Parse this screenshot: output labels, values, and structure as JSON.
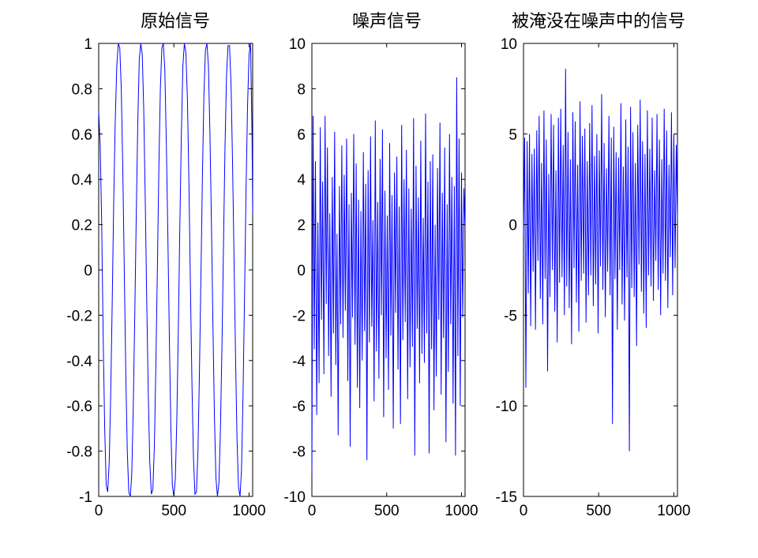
{
  "chart_data": [
    {
      "type": "line",
      "title": "原始信号",
      "xlabel": "",
      "ylabel": "",
      "xlim": [
        0,
        1024
      ],
      "ylim": [
        -1,
        1
      ],
      "xticks": [
        0,
        500,
        1000
      ],
      "yticks": [
        -1,
        -0.8,
        -0.6,
        -0.4,
        -0.2,
        0,
        0.2,
        0.4,
        0.6,
        0.8,
        1
      ],
      "ytick_labels": [
        "-1",
        "-0.8",
        "-0.6",
        "-0.4",
        "-0.2",
        "0",
        "0.2",
        "0.4",
        "0.6",
        "0.8",
        "1"
      ],
      "grid": false,
      "series": [
        {
          "color": "#0000ff",
          "x": [
            0,
            10,
            20,
            30,
            40,
            50,
            60,
            70,
            80,
            90,
            100,
            110,
            120,
            130,
            140,
            150,
            160,
            170,
            180,
            190,
            200,
            210,
            220,
            230,
            240,
            250,
            260,
            270,
            280,
            290,
            300,
            310,
            320,
            330,
            340,
            350,
            360,
            370,
            380,
            390,
            400,
            410,
            420,
            430,
            440,
            450,
            460,
            470,
            480,
            490,
            500,
            510,
            520,
            530,
            540,
            550,
            560,
            570,
            580,
            590,
            600,
            610,
            620,
            630,
            640,
            650,
            660,
            670,
            680,
            690,
            700,
            710,
            720,
            730,
            740,
            750,
            760,
            770,
            780,
            790,
            800,
            810,
            820,
            830,
            840,
            850,
            860,
            870,
            880,
            890,
            900,
            910,
            920,
            930,
            940,
            950,
            960,
            970,
            980,
            990,
            1000,
            1010,
            1020,
            1024
          ],
          "y": [
            0.7,
            0.55,
            0.2,
            -0.3,
            -0.7,
            -0.95,
            -0.98,
            -0.85,
            -0.55,
            -0.15,
            0.3,
            0.65,
            0.9,
            1.0,
            0.98,
            0.8,
            0.45,
            0.0,
            -0.45,
            -0.8,
            -0.98,
            -1.0,
            -0.9,
            -0.6,
            -0.2,
            0.25,
            0.65,
            0.93,
            1.0,
            0.95,
            0.7,
            0.3,
            -0.15,
            -0.55,
            -0.85,
            -0.99,
            -0.97,
            -0.78,
            -0.42,
            0.0,
            0.45,
            0.8,
            0.98,
            1.0,
            0.88,
            0.55,
            0.15,
            -0.3,
            -0.7,
            -0.95,
            -1.0,
            -0.92,
            -0.65,
            -0.25,
            0.2,
            0.6,
            0.9,
            1.0,
            0.96,
            0.75,
            0.38,
            -0.08,
            -0.5,
            -0.83,
            -0.99,
            -0.98,
            -0.8,
            -0.45,
            -0.02,
            0.42,
            0.78,
            0.97,
            1.0,
            0.9,
            0.6,
            0.2,
            -0.25,
            -0.65,
            -0.92,
            -1.0,
            -0.94,
            -0.7,
            -0.32,
            0.12,
            0.55,
            0.86,
            0.99,
            0.99,
            0.82,
            0.48,
            0.05,
            -0.38,
            -0.75,
            -0.96,
            -1.0,
            -0.88,
            -0.55,
            -0.12,
            0.35,
            0.72,
            0.95,
            1.0,
            0.6,
            0.25
          ]
        }
      ]
    },
    {
      "type": "line",
      "title": "噪声信号",
      "xlabel": "",
      "ylabel": "",
      "xlim": [
        0,
        1024
      ],
      "ylim": [
        -10,
        10
      ],
      "xticks": [
        0,
        500,
        1000
      ],
      "yticks": [
        -10,
        -8,
        -6,
        -4,
        -2,
        0,
        2,
        4,
        6,
        8,
        10
      ],
      "ytick_labels": [
        "-10",
        "-8",
        "-6",
        "-4",
        "-2",
        "0",
        "2",
        "4",
        "6",
        "8",
        "10"
      ],
      "grid": false,
      "series": [
        {
          "color": "#0000ff",
          "x": [
            0,
            8,
            16,
            24,
            32,
            40,
            48,
            56,
            64,
            72,
            80,
            88,
            96,
            104,
            112,
            120,
            128,
            136,
            144,
            152,
            160,
            168,
            176,
            184,
            192,
            200,
            208,
            216,
            224,
            232,
            240,
            248,
            256,
            264,
            272,
            280,
            288,
            296,
            304,
            312,
            320,
            328,
            336,
            344,
            352,
            360,
            368,
            376,
            384,
            392,
            400,
            408,
            416,
            424,
            432,
            440,
            448,
            456,
            464,
            472,
            480,
            488,
            496,
            504,
            512,
            520,
            528,
            536,
            544,
            552,
            560,
            568,
            576,
            584,
            592,
            600,
            608,
            616,
            624,
            632,
            640,
            648,
            656,
            664,
            672,
            680,
            688,
            696,
            704,
            712,
            720,
            728,
            736,
            744,
            752,
            760,
            768,
            776,
            784,
            792,
            800,
            808,
            816,
            824,
            832,
            840,
            848,
            856,
            864,
            872,
            880,
            888,
            896,
            904,
            912,
            920,
            928,
            936,
            944,
            952,
            960,
            968,
            976,
            984,
            992,
            1000,
            1008,
            1016,
            1024
          ],
          "y": [
            -9.0,
            6.8,
            -3.5,
            4.8,
            -6.4,
            2.1,
            -5.0,
            6.3,
            -2.2,
            3.9,
            -4.6,
            6.8,
            -1.5,
            5.4,
            -3.8,
            2.5,
            -5.6,
            4.1,
            -2.8,
            6.1,
            -4.2,
            1.6,
            -7.3,
            3.7,
            -2.4,
            5.5,
            -3.0,
            4.2,
            -1.8,
            5.8,
            -4.9,
            2.9,
            -7.8,
            3.4,
            -2.1,
            6.0,
            -3.3,
            4.7,
            -5.2,
            3.1,
            -6.1,
            2.6,
            -4.0,
            5.2,
            -2.7,
            3.8,
            -8.4,
            4.4,
            -3.2,
            5.9,
            -2.5,
            2.2,
            -5.8,
            6.6,
            -3.6,
            3.0,
            -4.8,
            4.9,
            -2.0,
            6.2,
            -6.5,
            3.5,
            -3.9,
            2.4,
            -5.3,
            5.6,
            -2.9,
            3.3,
            -7.0,
            4.3,
            -1.9,
            5.0,
            -4.4,
            2.8,
            -6.8,
            6.4,
            -3.1,
            4.0,
            -2.3,
            5.3,
            -5.7,
            3.6,
            -4.3,
            2.7,
            -3.4,
            6.7,
            -8.2,
            4.6,
            -2.6,
            3.2,
            -5.0,
            5.7,
            -3.7,
            2.3,
            -4.1,
            6.9,
            -2.8,
            3.9,
            -8.1,
            4.8,
            -3.5,
            5.1,
            -6.2,
            2.0,
            -4.7,
            4.5,
            -2.2,
            6.5,
            -5.5,
            3.4,
            -3.0,
            5.4,
            -7.6,
            2.9,
            -4.5,
            6.0,
            -2.4,
            4.1,
            -5.9,
            3.7,
            -8.2,
            8.5,
            -3.8,
            5.8,
            -6.0,
            4.3,
            -2.1,
            3.6,
            1.8
          ]
        }
      ]
    },
    {
      "type": "line",
      "title": "被淹没在噪声中的信号",
      "xlabel": "",
      "ylabel": "",
      "xlim": [
        0,
        1024
      ],
      "ylim": [
        -15,
        10
      ],
      "xticks": [
        0,
        500,
        1000
      ],
      "yticks": [
        -15,
        -10,
        -5,
        0,
        5,
        10
      ],
      "ytick_labels": [
        "-15",
        "-10",
        "-5",
        "0",
        "5",
        "10"
      ],
      "grid": false,
      "series": [
        {
          "color": "#0000ff",
          "x": [
            0,
            8,
            16,
            24,
            32,
            40,
            48,
            56,
            64,
            72,
            80,
            88,
            96,
            104,
            112,
            120,
            128,
            136,
            144,
            152,
            160,
            168,
            176,
            184,
            192,
            200,
            208,
            216,
            224,
            232,
            240,
            248,
            256,
            264,
            272,
            280,
            288,
            296,
            304,
            312,
            320,
            328,
            336,
            344,
            352,
            360,
            368,
            376,
            384,
            392,
            400,
            408,
            416,
            424,
            432,
            440,
            448,
            456,
            464,
            472,
            480,
            488,
            496,
            504,
            512,
            520,
            528,
            536,
            544,
            552,
            560,
            568,
            576,
            584,
            592,
            600,
            608,
            616,
            624,
            632,
            640,
            648,
            656,
            664,
            672,
            680,
            688,
            696,
            704,
            712,
            720,
            728,
            736,
            744,
            752,
            760,
            768,
            776,
            784,
            792,
            800,
            808,
            816,
            824,
            832,
            840,
            848,
            856,
            864,
            872,
            880,
            888,
            896,
            904,
            912,
            920,
            928,
            936,
            944,
            952,
            960,
            968,
            976,
            984,
            992,
            1000,
            1008,
            1016,
            1024
          ],
          "y": [
            -0.5,
            4.8,
            -9.0,
            4.6,
            -3.8,
            5.0,
            -5.6,
            3.9,
            -2.6,
            4.2,
            -5.8,
            5.2,
            -2.0,
            6.0,
            -4.1,
            3.4,
            -5.5,
            6.3,
            -3.0,
            4.7,
            -8.1,
            2.8,
            -4.0,
            6.1,
            -2.5,
            5.5,
            -4.8,
            3.0,
            -6.5,
            5.9,
            -3.2,
            6.4,
            -2.9,
            4.4,
            -5.0,
            8.6,
            -3.4,
            5.1,
            -4.6,
            3.6,
            -6.6,
            6.2,
            -2.4,
            5.7,
            -4.3,
            3.3,
            -5.9,
            6.8,
            -3.1,
            4.9,
            -2.7,
            5.3,
            -5.4,
            3.5,
            -3.9,
            5.6,
            -2.8,
            6.6,
            -4.5,
            3.8,
            -3.3,
            5.0,
            -6.0,
            4.1,
            -2.3,
            7.2,
            -3.6,
            4.5,
            -5.1,
            3.1,
            -2.6,
            6.0,
            -3.9,
            4.8,
            -11.0,
            5.4,
            -3.0,
            4.0,
            -5.8,
            3.7,
            -2.5,
            6.7,
            -4.4,
            3.2,
            -5.3,
            5.8,
            -2.9,
            4.3,
            -12.5,
            6.5,
            -3.5,
            5.1,
            -4.0,
            3.4,
            -6.7,
            5.5,
            -2.2,
            6.9,
            -3.7,
            4.6,
            -4.9,
            3.9,
            -5.7,
            6.3,
            -2.8,
            4.2,
            -3.4,
            5.9,
            -4.2,
            3.0,
            -2.0,
            6.1,
            -3.6,
            4.7,
            -5.0,
            3.6,
            -2.7,
            6.4,
            -3.1,
            5.2,
            -4.6,
            3.3,
            -1.8,
            6.2,
            -3.9,
            5.0,
            -2.4,
            4.4,
            0.3
          ]
        }
      ]
    }
  ]
}
